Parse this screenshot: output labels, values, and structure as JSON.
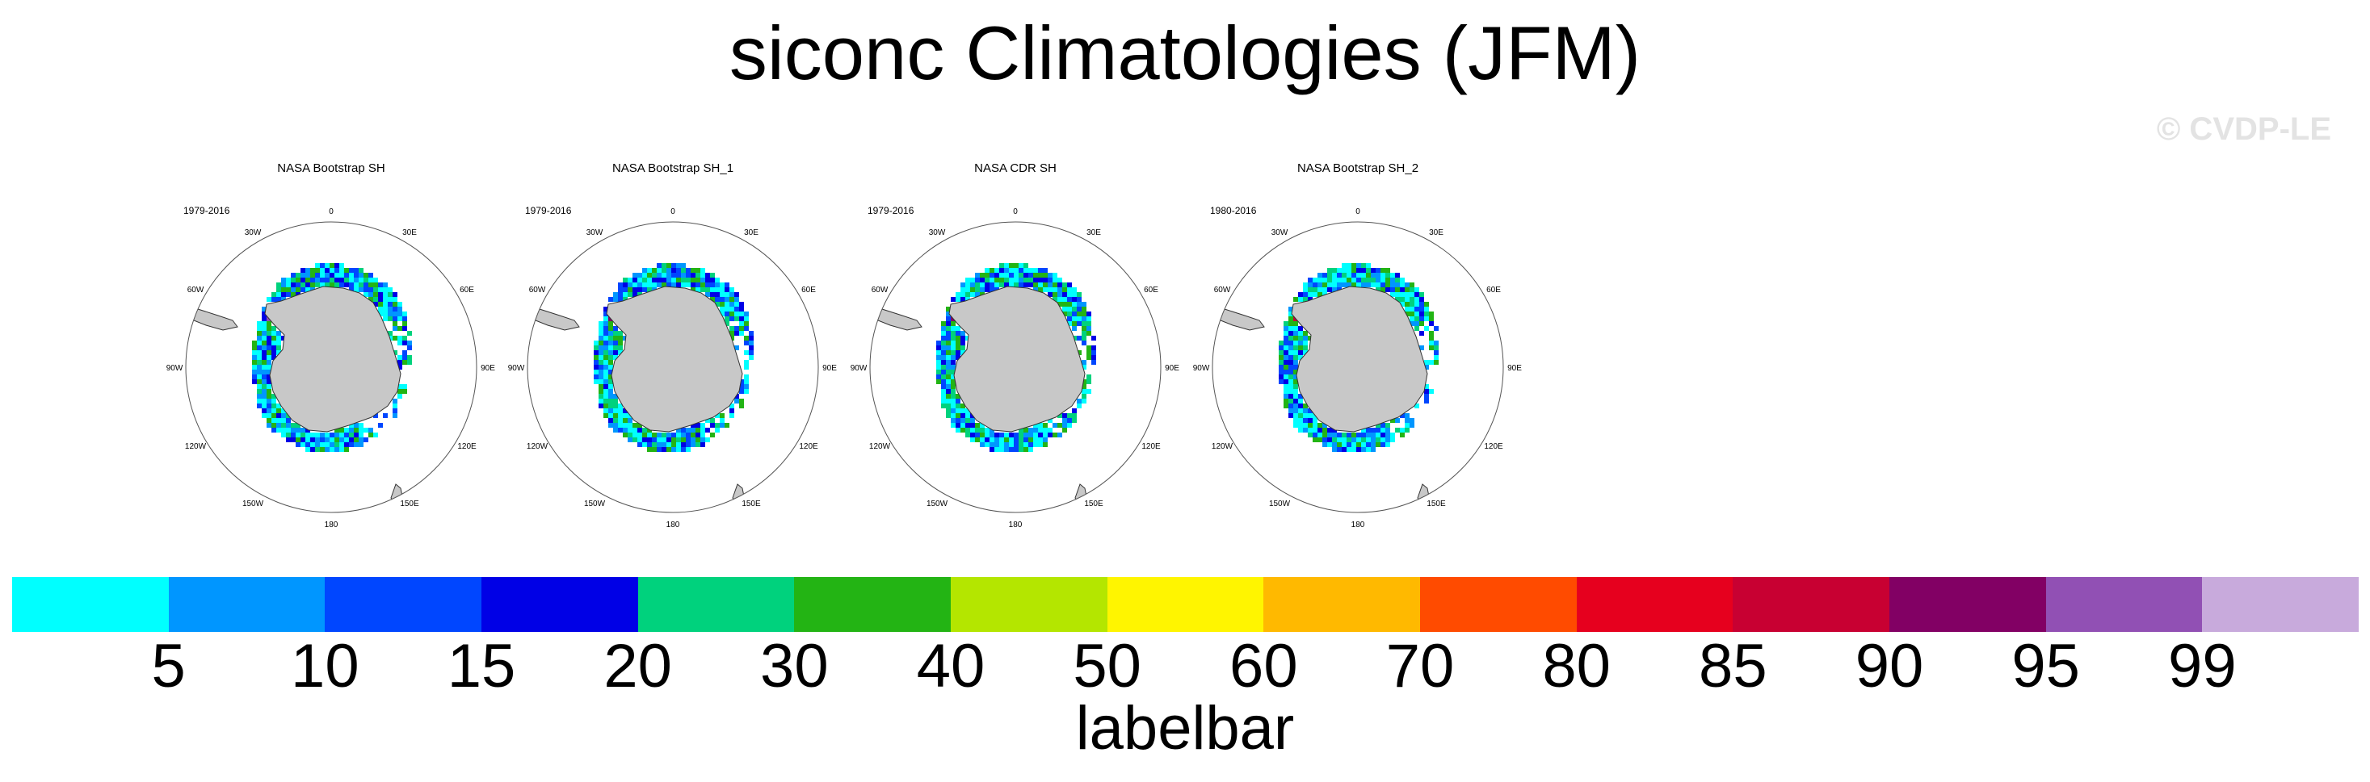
{
  "chart_data": {
    "type": "heatmap",
    "title": "siconc Climatologies (JFM)",
    "watermark": "© CVDP-LE",
    "projection": "south-polar-stereographic",
    "longitude_labels": [
      "0",
      "30E",
      "60E",
      "90E",
      "120E",
      "150E",
      "180",
      "150W",
      "120W",
      "90W",
      "60W",
      "30W"
    ],
    "panels": [
      {
        "name": "NASA Bootstrap SH",
        "years": "1979-2016"
      },
      {
        "name": "NASA Bootstrap SH_1",
        "years": "1979-2016"
      },
      {
        "name": "NASA CDR SH",
        "years": "1979-2016"
      },
      {
        "name": "NASA Bootstrap SH_2",
        "years": "1980-2016"
      }
    ],
    "labelbar": {
      "title": "labelbar",
      "levels": [
        "5",
        "10",
        "15",
        "20",
        "30",
        "40",
        "50",
        "60",
        "70",
        "80",
        "85",
        "90",
        "95",
        "99"
      ],
      "colors": [
        "#00ffff",
        "#0096ff",
        "#0046ff",
        "#0000e6",
        "#00d27d",
        "#23b414",
        "#b4e600",
        "#fff500",
        "#ffb900",
        "#ff4b00",
        "#e6001e",
        "#c80032",
        "#820064",
        "#9150b4",
        "#c8aadc"
      ]
    }
  }
}
